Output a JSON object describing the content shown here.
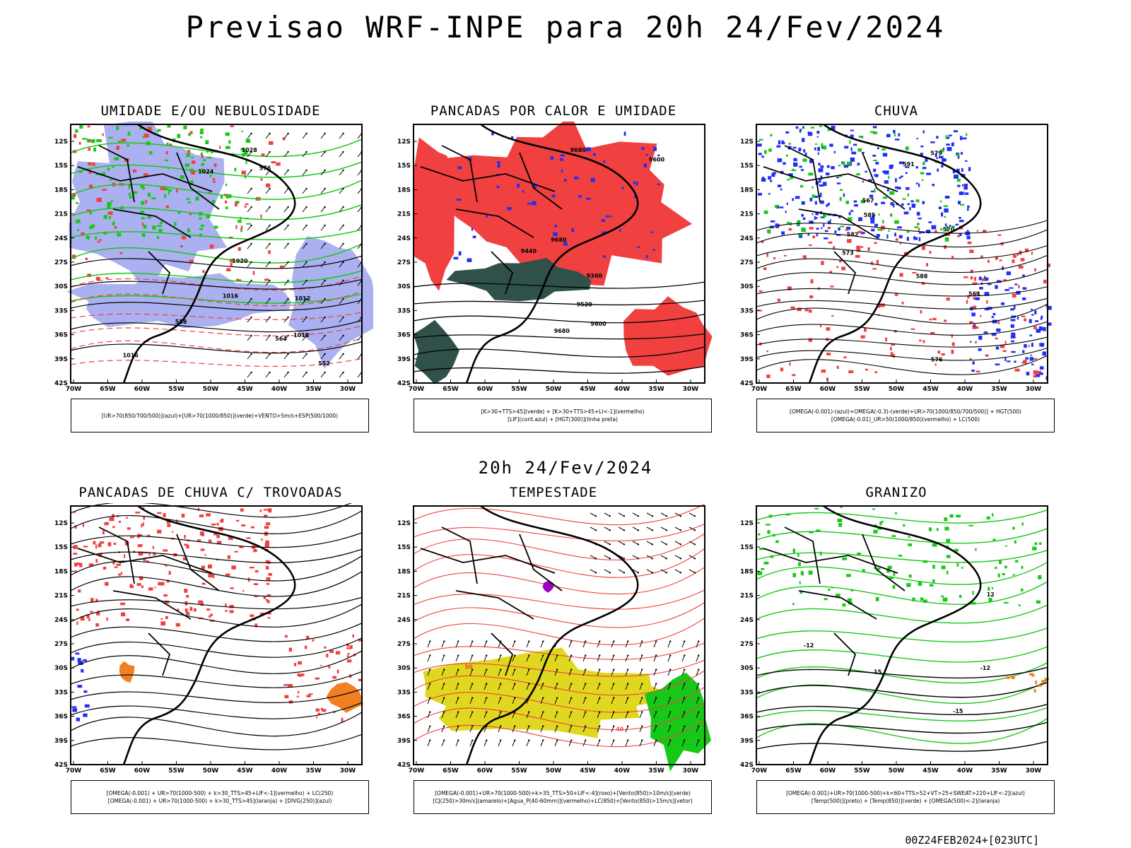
{
  "title": "Previsao WRF-INPE  para 20h 24/Fev/2024",
  "subtitle": "20h 24/Fev/2024",
  "footer": "00Z24FEB2024+[023UTC]",
  "lat_ticks": [
    "12S",
    "15S",
    "18S",
    "21S",
    "24S",
    "27S",
    "30S",
    "33S",
    "36S",
    "39S",
    "42S"
  ],
  "lon_ticks": [
    "70W",
    "65W",
    "60W",
    "55W",
    "50W",
    "45W",
    "40W",
    "35W",
    "30W"
  ],
  "panels": [
    {
      "title": "UMIDADE E/OU NEBULOSIDADE",
      "legend": [
        "[UR>70(850/700/500)](azul)+[UR>70(1000/850)](verde)+VENTO>5m/s+ESP(500/1000)"
      ],
      "contour_labels": [
        "1016",
        "1012",
        "1020",
        "1016",
        "1024",
        "1028",
        "1018",
        "576",
        "564",
        "558",
        "552"
      ]
    },
    {
      "title": "PANCADAS POR CALOR E UMIDADE",
      "legend": [
        "[K>30+TTS>45](verde) + [K>30+TTS>45+LI<-1](vermelho)",
        "[LIF](cont.azul) + [HGT(300)](linha preta)"
      ],
      "contour_labels": [
        "9680",
        "9680",
        "9600",
        "9520",
        "9440",
        "9360",
        "9680",
        "9600"
      ]
    },
    {
      "title": "CHUVA",
      "legend": [
        "[OMEGA(-0.001)-(azul)+OMEGA(-0.3)-(verde)+UR>70(1000/850/700/500)] + HGT(500)",
        "[OMEGA(-0.01)_UR>50(1000/850)(vermelho) + LC(500)"
      ],
      "contour_labels": [
        "591",
        "588",
        "585",
        "582",
        "579",
        "576",
        "573",
        "570",
        "567",
        "564"
      ]
    },
    {
      "title": "PANCADAS DE CHUVA C/ TROVOADAS",
      "legend": [
        "[OMEGA(-0.001) + UR>70(1000-500) + k>30_TTS>45+LIF<-1](vermelho) + LC(250)",
        "[OMEGA(-0.001) + UR>70(1000-500) + k>30_TTS>45](laranja) + [DIVG(250)](azul)"
      ],
      "contour_labels": []
    },
    {
      "title": "TEMPESTADE",
      "legend": [
        "[OMEGA(-0.001)+UR>70(1000-500)+k>35_TTS>50+LIF<-4](roxo)+[Vento(850)>10m/s](verde)",
        "[CJ(250)>30m/s](amarelo)+[Agua_P(40-60mm)](vermelho)+LC(850)+[Vento(850)>15m/s](vetor)"
      ],
      "contour_labels": [
        "40",
        "50"
      ]
    },
    {
      "title": "GRANIZO",
      "legend": [
        "[OMEGA(-0.001)+UR>70(1000-500)+k<60+TTS>52+VT>25+SWEAT>220+LIF<-2](azul)",
        "[Temp(500)](preto) + [Temp(850)](verde) + [OMEGA(500)<-2](laranja)"
      ],
      "contour_labels": [
        "12",
        "15",
        "-12",
        "-15",
        "-12"
      ]
    }
  ],
  "colors": {
    "red": "#f04040",
    "green": "#18c818",
    "blue": "#2030f0",
    "lavender": "#aab0f0",
    "darkteal": "#30504a",
    "yellow": "#e0d820",
    "orange": "#f08020",
    "purple": "#a000c0"
  }
}
